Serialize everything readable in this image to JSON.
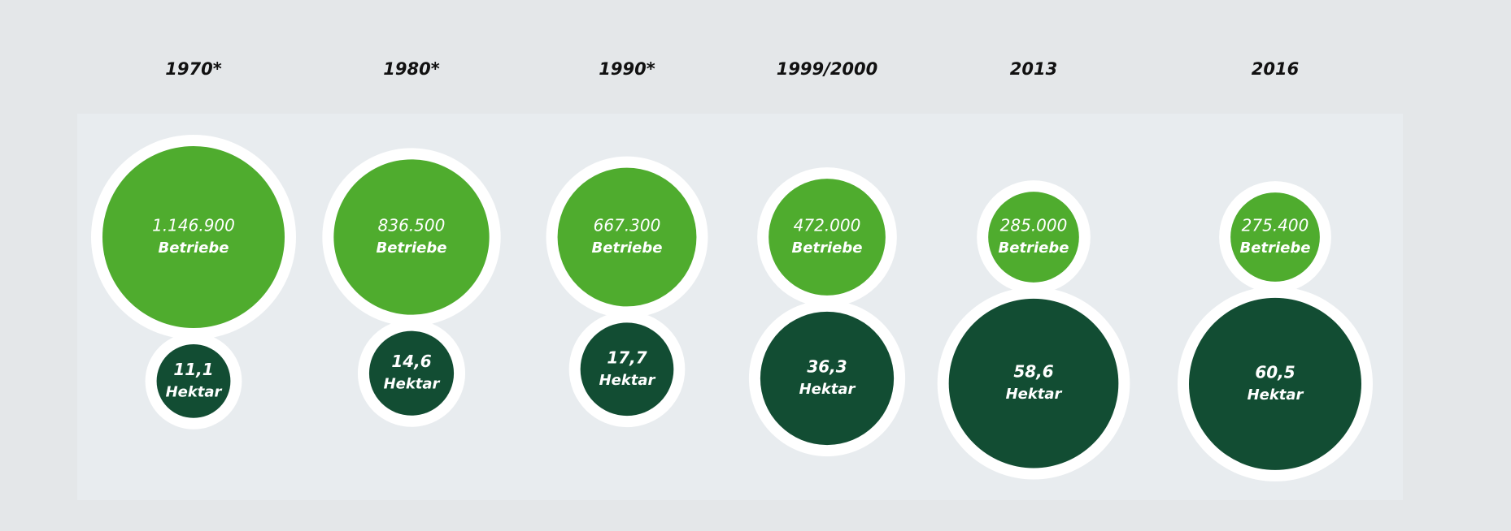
{
  "chart_data": {
    "type": "bubble-pairs",
    "categories": [
      "1970*",
      "1980*",
      "1990*",
      "1999/2000",
      "2013",
      "2016"
    ],
    "series": [
      {
        "name": "Betriebe",
        "color": "#4fac2e",
        "values": [
          1146900,
          836500,
          667300,
          472000,
          285000,
          275400
        ],
        "value_labels": [
          "1.146.900",
          "836.500",
          "667.300",
          "472.000",
          "285.000",
          "275.400"
        ]
      },
      {
        "name": "Hektar",
        "color": "#124d33",
        "values": [
          11.1,
          14.6,
          17.7,
          36.3,
          58.6,
          60.5
        ],
        "value_labels": [
          "11,1",
          "14,6",
          "17,7",
          "36,3",
          "58,6",
          "60,5"
        ]
      }
    ]
  }
}
